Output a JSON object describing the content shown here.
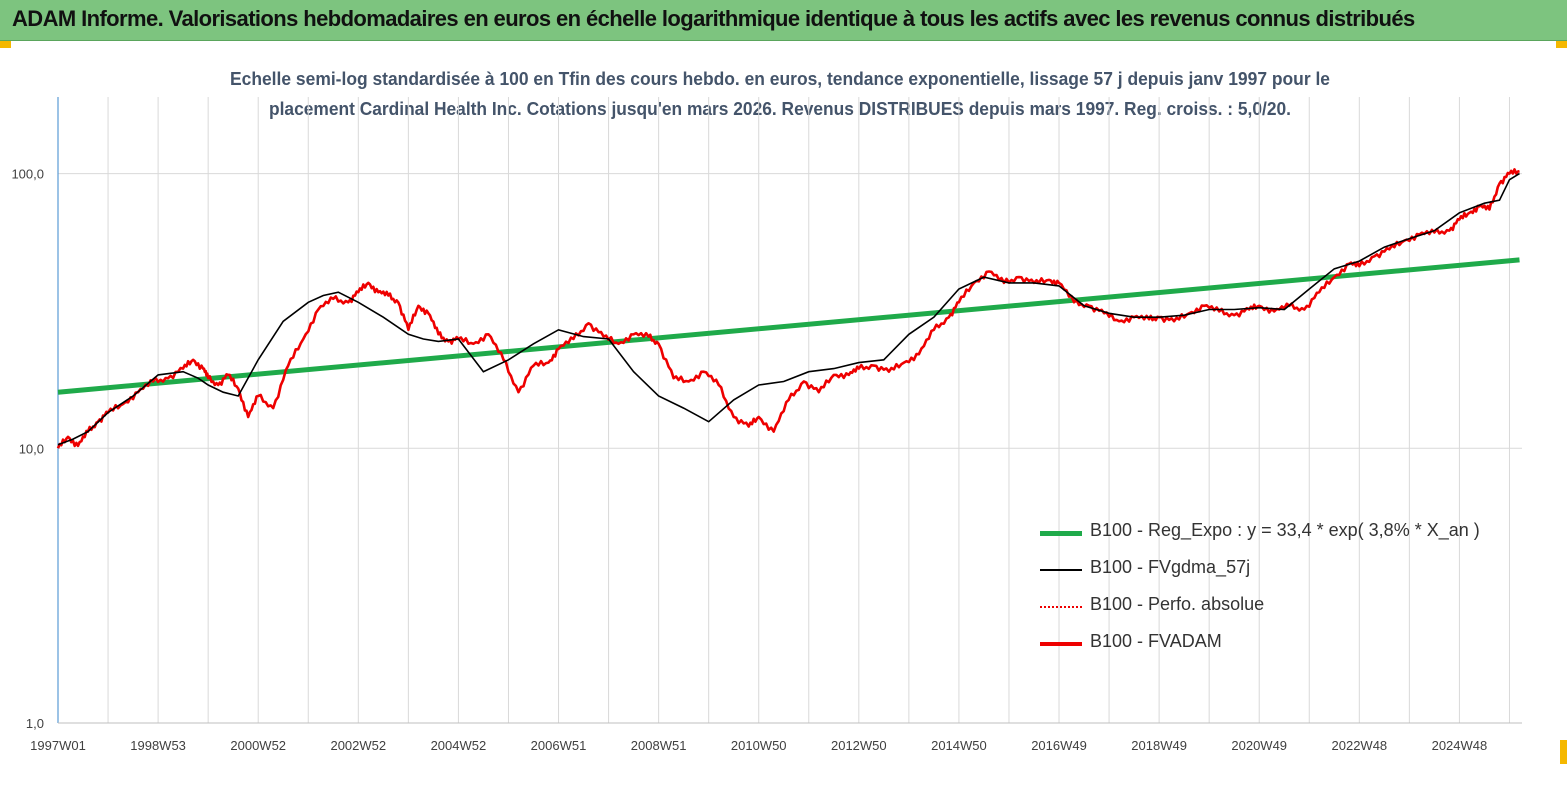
{
  "header": {
    "title": "ADAM Informe. Valorisations hebdomadaires en euros en échelle logarithmique identique à tous les actifs avec les revenus connus distribués"
  },
  "colors": {
    "header_bg": "#7dc47f",
    "accent_corner": "#f5b800",
    "regression": "#1faa4a",
    "moving_average": "#000000",
    "fvadam": "#ee0000",
    "perfo": "#ee0000"
  },
  "chart_data": {
    "type": "line",
    "title_line1": "Echelle semi-log standardisée à 100 en Tfin des cours hebdo. en euros, tendance exponentielle, lissage 57 j depuis janv 1997 pour le",
    "title_line2": "placement Cardinal Health Inc. Cotations jusqu'en mars 2026. Revenus DISTRIBUES depuis mars 1997. Reg. croiss. : 5,0/20.",
    "y_scale": "log",
    "ylim": [
      1,
      190
    ],
    "xlim": [
      1997.0,
      2026.25
    ],
    "grid": true,
    "legend_position": "bottom-right",
    "y_ticks": [
      {
        "value": 1,
        "label": "1,0"
      },
      {
        "value": 10,
        "label": "10,0"
      },
      {
        "value": 100,
        "label": "100,0"
      }
    ],
    "x_ticks": [
      {
        "value": 1997.0,
        "label": "1997W01"
      },
      {
        "value": 1999.0,
        "label": "1998W53"
      },
      {
        "value": 2001.0,
        "label": "2000W52"
      },
      {
        "value": 2003.0,
        "label": "2002W52"
      },
      {
        "value": 2005.0,
        "label": "2004W52"
      },
      {
        "value": 2007.0,
        "label": "2006W51"
      },
      {
        "value": 2009.0,
        "label": "2008W51"
      },
      {
        "value": 2011.0,
        "label": "2010W50"
      },
      {
        "value": 2013.0,
        "label": "2012W50"
      },
      {
        "value": 2015.0,
        "label": "2014W50"
      },
      {
        "value": 2017.0,
        "label": "2016W49"
      },
      {
        "value": 2019.0,
        "label": "2018W49"
      },
      {
        "value": 2021.0,
        "label": "2020W49"
      },
      {
        "value": 2023.0,
        "label": "2022W48"
      },
      {
        "value": 2025.0,
        "label": "2024W48"
      }
    ],
    "series": [
      {
        "name": "B100 - Reg_Expo : y = 33,4 * exp( 3,8% *  X_an )",
        "style": "regression",
        "x": [
          1997.0,
          2026.2
        ],
        "y": [
          16.0,
          48.5
        ]
      },
      {
        "name": "B100 - FVgdma_57j",
        "style": "moving_average",
        "x": [
          1997.0,
          1997.3,
          1997.6,
          1998.0,
          1998.5,
          1999.0,
          1999.5,
          1999.8,
          2000.0,
          2000.3,
          2000.6,
          2001.0,
          2001.5,
          2002.0,
          2002.3,
          2002.6,
          2003.0,
          2003.5,
          2004.0,
          2004.3,
          2004.6,
          2005.0,
          2005.5,
          2006.0,
          2006.5,
          2007.0,
          2007.5,
          2008.0,
          2008.5,
          2009.0,
          2009.5,
          2010.0,
          2010.5,
          2011.0,
          2011.5,
          2012.0,
          2012.5,
          2013.0,
          2013.5,
          2014.0,
          2014.5,
          2015.0,
          2015.5,
          2016.0,
          2016.5,
          2017.0,
          2017.5,
          2018.0,
          2018.5,
          2019.0,
          2019.5,
          2020.0,
          2020.5,
          2021.0,
          2021.5,
          2022.0,
          2022.5,
          2023.0,
          2023.5,
          2024.0,
          2024.5,
          2025.0,
          2025.5,
          2025.8,
          2026.0,
          2026.2
        ],
        "y": [
          10.3,
          10.8,
          11.5,
          13.5,
          15.5,
          18.5,
          19.0,
          18.0,
          17.0,
          16.0,
          15.5,
          21.0,
          29.0,
          34.0,
          36.0,
          37.0,
          34.0,
          30.0,
          26.0,
          25.0,
          24.5,
          25.0,
          19.0,
          21.0,
          24.0,
          27.0,
          25.5,
          25.0,
          19.0,
          15.5,
          14.0,
          12.5,
          15.0,
          17.0,
          17.5,
          19.0,
          19.5,
          20.5,
          21.0,
          26.0,
          30.0,
          38.0,
          42.0,
          40.0,
          40.0,
          39.0,
          33.0,
          31.0,
          30.0,
          30.0,
          30.5,
          32.0,
          32.0,
          32.5,
          32.0,
          38.0,
          45.0,
          48.0,
          54.0,
          58.0,
          62.0,
          72.0,
          78.0,
          80.0,
          95.0,
          100.0
        ]
      },
      {
        "name": "B100 - Perfo. absolue",
        "style": "perfo",
        "x": [],
        "y": []
      },
      {
        "name": "B100 - FVADAM",
        "style": "fvadam",
        "x": [
          1997.0,
          1997.2,
          1997.4,
          1997.6,
          1997.8,
          1998.0,
          1998.3,
          1998.6,
          1998.9,
          1999.2,
          1999.5,
          1999.7,
          1999.9,
          2000.0,
          2000.2,
          2000.4,
          2000.6,
          2000.8,
          2001.0,
          2001.3,
          2001.6,
          2001.9,
          2002.2,
          2002.5,
          2002.8,
          2003.0,
          2003.2,
          2003.4,
          2003.6,
          2003.8,
          2004.0,
          2004.2,
          2004.4,
          2004.6,
          2004.8,
          2005.0,
          2005.3,
          2005.6,
          2005.9,
          2006.2,
          2006.5,
          2006.8,
          2007.0,
          2007.3,
          2007.6,
          2007.9,
          2008.2,
          2008.5,
          2008.8,
          2009.0,
          2009.3,
          2009.6,
          2009.9,
          2010.2,
          2010.5,
          2010.8,
          2011.0,
          2011.3,
          2011.6,
          2011.9,
          2012.2,
          2012.5,
          2012.8,
          2013.0,
          2013.3,
          2013.6,
          2013.9,
          2014.2,
          2014.5,
          2014.8,
          2015.0,
          2015.3,
          2015.6,
          2015.9,
          2016.2,
          2016.5,
          2016.8,
          2017.0,
          2017.3,
          2017.6,
          2017.9,
          2018.2,
          2018.5,
          2018.8,
          2019.0,
          2019.3,
          2019.6,
          2019.9,
          2020.2,
          2020.5,
          2020.8,
          2021.0,
          2021.3,
          2021.6,
          2021.9,
          2022.2,
          2022.5,
          2022.8,
          2023.0,
          2023.3,
          2023.6,
          2023.9,
          2024.2,
          2024.5,
          2024.8,
          2025.0,
          2025.2,
          2025.4,
          2025.6,
          2025.8,
          2026.0,
          2026.2
        ],
        "y": [
          10.0,
          11.0,
          10.2,
          11.5,
          12.5,
          13.5,
          14.5,
          16.0,
          17.5,
          18.0,
          19.5,
          21.0,
          19.5,
          18.0,
          17.0,
          18.5,
          16.5,
          13.0,
          15.5,
          14.0,
          20.0,
          25.0,
          32.0,
          35.0,
          34.0,
          37.0,
          40.0,
          37.0,
          36.0,
          34.0,
          27.0,
          33.0,
          31.0,
          26.0,
          24.5,
          25.0,
          24.0,
          26.0,
          21.0,
          16.0,
          20.0,
          20.5,
          23.0,
          25.0,
          28.5,
          25.5,
          24.0,
          26.0,
          25.5,
          24.0,
          18.0,
          17.5,
          19.0,
          17.0,
          13.0,
          12.0,
          13.0,
          11.5,
          15.0,
          17.5,
          16.0,
          18.5,
          18.5,
          19.5,
          20.0,
          19.0,
          20.5,
          22.0,
          27.0,
          30.0,
          34.0,
          40.0,
          44.0,
          40.0,
          42.0,
          40.0,
          41.0,
          40.0,
          34.0,
          33.0,
          31.0,
          29.0,
          30.0,
          29.5,
          30.0,
          29.0,
          31.0,
          33.0,
          31.5,
          30.5,
          32.0,
          33.0,
          31.5,
          33.0,
          32.0,
          37.0,
          42.0,
          47.0,
          46.0,
          50.0,
          53.0,
          57.0,
          60.0,
          61.0,
          62.0,
          68.0,
          72.0,
          76.0,
          74.0,
          92.0,
          100.0,
          102.0
        ]
      }
    ]
  }
}
